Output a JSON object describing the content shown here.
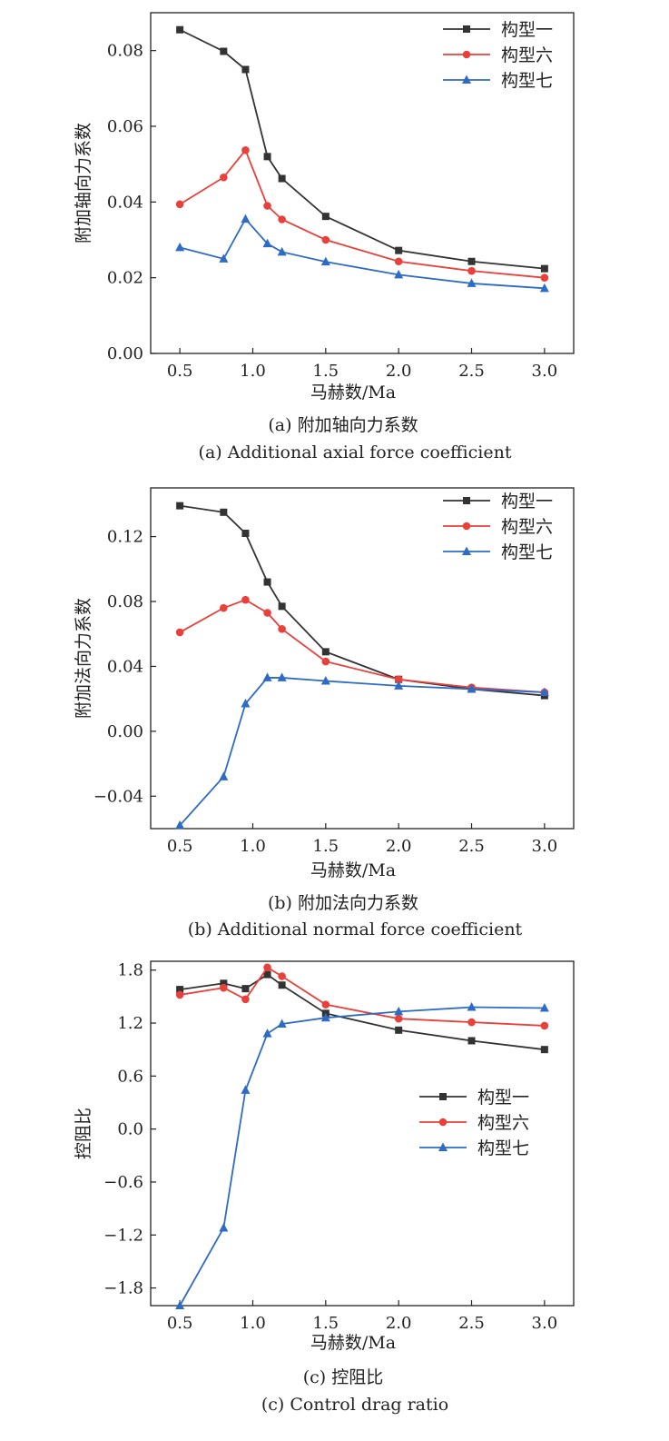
{
  "chart_data": [
    {
      "type": "line",
      "caption_cn": "(a) 附加轴向力系数",
      "caption_en": "(a) Additional axial force coefficient",
      "xlabel": "马赫数/Ma",
      "ylabel": "附加轴向力系数",
      "x": [
        0.5,
        0.8,
        0.95,
        1.1,
        1.2,
        1.5,
        2.0,
        2.5,
        3.0
      ],
      "xlim": [
        0.3,
        3.2
      ],
      "ylim": [
        0.0,
        0.09
      ],
      "xticks": [
        "0.5",
        "1.0",
        "1.5",
        "2.0",
        "2.5",
        "3.0"
      ],
      "yticks": [
        "0.00",
        "0.02",
        "0.04",
        "0.06",
        "0.08"
      ],
      "legend_position": "top-right",
      "series": [
        {
          "name": "构型一",
          "color": "#333333",
          "marker": "square",
          "values": [
            0.0855,
            0.0798,
            0.075,
            0.052,
            0.0462,
            0.0362,
            0.0272,
            0.0243,
            0.0224
          ]
        },
        {
          "name": "构型六",
          "color": "#e8403a",
          "marker": "circle",
          "values": [
            0.0394,
            0.0465,
            0.0537,
            0.039,
            0.0354,
            0.03,
            0.0243,
            0.0218,
            0.02
          ]
        },
        {
          "name": "构型七",
          "color": "#2e6bc4",
          "marker": "triangle",
          "values": [
            0.028,
            0.025,
            0.0355,
            0.029,
            0.0268,
            0.0242,
            0.0208,
            0.0185,
            0.0172
          ]
        }
      ]
    },
    {
      "type": "line",
      "caption_cn": "(b) 附加法向力系数",
      "caption_en": "(b) Additional normal force coefficient",
      "xlabel": "马赫数/Ma",
      "ylabel": "附加法向力系数",
      "x": [
        0.5,
        0.8,
        0.95,
        1.1,
        1.2,
        1.5,
        2.0,
        2.5,
        3.0
      ],
      "xlim": [
        0.3,
        3.2
      ],
      "ylim": [
        -0.06,
        0.15
      ],
      "xticks": [
        "0.5",
        "1.0",
        "1.5",
        "2.0",
        "2.5",
        "3.0"
      ],
      "yticks": [
        "−0.04",
        "0.00",
        "0.04",
        "0.08",
        "0.12"
      ],
      "legend_position": "top-right",
      "series": [
        {
          "name": "构型一",
          "color": "#333333",
          "marker": "square",
          "values": [
            0.139,
            0.135,
            0.122,
            0.092,
            0.077,
            0.049,
            0.032,
            0.026,
            0.022
          ]
        },
        {
          "name": "构型六",
          "color": "#e8403a",
          "marker": "circle",
          "values": [
            0.061,
            0.076,
            0.081,
            0.073,
            0.063,
            0.043,
            0.032,
            0.027,
            0.024
          ]
        },
        {
          "name": "构型七",
          "color": "#2e6bc4",
          "marker": "triangle",
          "values": [
            -0.058,
            -0.028,
            0.017,
            0.033,
            0.033,
            0.031,
            0.028,
            0.026,
            0.024
          ]
        }
      ]
    },
    {
      "type": "line",
      "caption_cn": "(c) 控阻比",
      "caption_en": "(c) Control drag ratio",
      "xlabel": "马赫数/Ma",
      "ylabel": "控阻比",
      "x": [
        0.5,
        0.8,
        0.95,
        1.1,
        1.2,
        1.5,
        2.0,
        2.5,
        3.0
      ],
      "xlim": [
        0.3,
        3.2
      ],
      "ylim": [
        -2.0,
        1.9
      ],
      "xticks": [
        "0.5",
        "1.0",
        "1.5",
        "2.0",
        "2.5",
        "3.0"
      ],
      "yticks": [
        "−1.8",
        "−1.2",
        "−0.6",
        "0.0",
        "0.6",
        "1.2",
        "1.8"
      ],
      "legend_position": "center-right",
      "series": [
        {
          "name": "构型一",
          "color": "#333333",
          "marker": "square",
          "values": [
            1.58,
            1.65,
            1.59,
            1.75,
            1.63,
            1.31,
            1.12,
            1.0,
            0.9
          ]
        },
        {
          "name": "构型六",
          "color": "#e8403a",
          "marker": "circle",
          "values": [
            1.52,
            1.6,
            1.47,
            1.83,
            1.73,
            1.41,
            1.25,
            1.21,
            1.17
          ]
        },
        {
          "name": "构型七",
          "color": "#2e6bc4",
          "marker": "triangle",
          "values": [
            -2.0,
            -1.12,
            0.44,
            1.08,
            1.19,
            1.26,
            1.33,
            1.38,
            1.37
          ]
        }
      ]
    }
  ]
}
